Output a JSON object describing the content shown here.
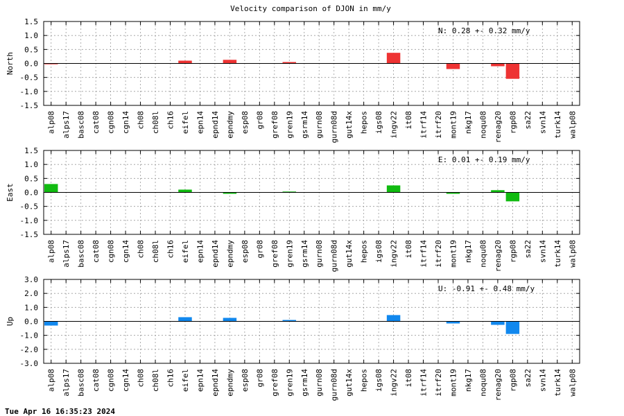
{
  "chart_data": {
    "type": "bar",
    "title": "Velocity comparison of DJON in mm/y",
    "footer": "Tue Apr 16 16:35:23 2024",
    "categories": [
      "alp08",
      "alps17",
      "basc08",
      "cat08",
      "cgn08",
      "cgn14",
      "ch08",
      "ch08l",
      "ch16",
      "eifel",
      "epn14",
      "epnd14",
      "epndmy",
      "esp08",
      "gr08",
      "gref08",
      "gren19",
      "gsrm14",
      "gurn08",
      "gurn08d",
      "gut14x",
      "hepos",
      "igs08",
      "ingv22",
      "it08",
      "itrf14",
      "itrf20",
      "mont19",
      "nkg17",
      "noqu08",
      "renag20",
      "rgp08",
      "sa22",
      "svn14",
      "turk14",
      "walp08"
    ],
    "grid": true,
    "panels": [
      {
        "ylabel": "North",
        "ylim": [
          -1.5,
          1.5
        ],
        "yticks": [
          "1.5",
          "1.0",
          "0.5",
          "0.0",
          "-0.5",
          "-1.0",
          "-1.5"
        ],
        "color": "#ee3333",
        "annotation": "N:   0.28 +-  0.32 mm/y",
        "values": [
          -0.03,
          0,
          0,
          0,
          0,
          0,
          0,
          0,
          0,
          0.1,
          0,
          0,
          0.13,
          0,
          0,
          0,
          0.05,
          0,
          0,
          0,
          0,
          0,
          0,
          0.38,
          0,
          0,
          0,
          -0.2,
          0,
          0,
          -0.1,
          -0.55,
          0,
          0,
          0,
          0
        ]
      },
      {
        "ylabel": "East",
        "ylim": [
          -1.5,
          1.5
        ],
        "yticks": [
          "1.5",
          "1.0",
          "0.5",
          "0.0",
          "-0.5",
          "-1.0",
          "-1.5"
        ],
        "color": "#11bb11",
        "annotation": "E:   0.01 +-  0.19 mm/y",
        "values": [
          0.3,
          0,
          0,
          0,
          0,
          0,
          0,
          0,
          0,
          0.1,
          0,
          0,
          -0.05,
          0,
          0,
          0,
          0.03,
          0,
          0,
          0,
          0,
          0,
          0,
          0.25,
          0,
          0,
          0,
          -0.05,
          0,
          0,
          0.08,
          -0.32,
          0,
          0,
          0,
          0
        ]
      },
      {
        "ylabel": "Up",
        "ylim": [
          -3.0,
          3.0
        ],
        "yticks": [
          "3.0",
          "2.0",
          "1.0",
          "0.0",
          "-1.0",
          "-2.0",
          "-3.0"
        ],
        "color": "#1188ee",
        "annotation": "U:  -0.91 +-  0.48 mm/y",
        "values": [
          -0.3,
          0,
          0,
          0,
          0,
          0,
          0,
          0,
          0,
          0.3,
          0,
          0,
          0.25,
          0,
          0,
          0,
          0.1,
          0,
          0,
          0,
          0,
          0,
          0,
          0.45,
          0,
          0,
          0,
          -0.15,
          0,
          0,
          -0.25,
          -0.9,
          0,
          0,
          0,
          0
        ]
      }
    ]
  }
}
